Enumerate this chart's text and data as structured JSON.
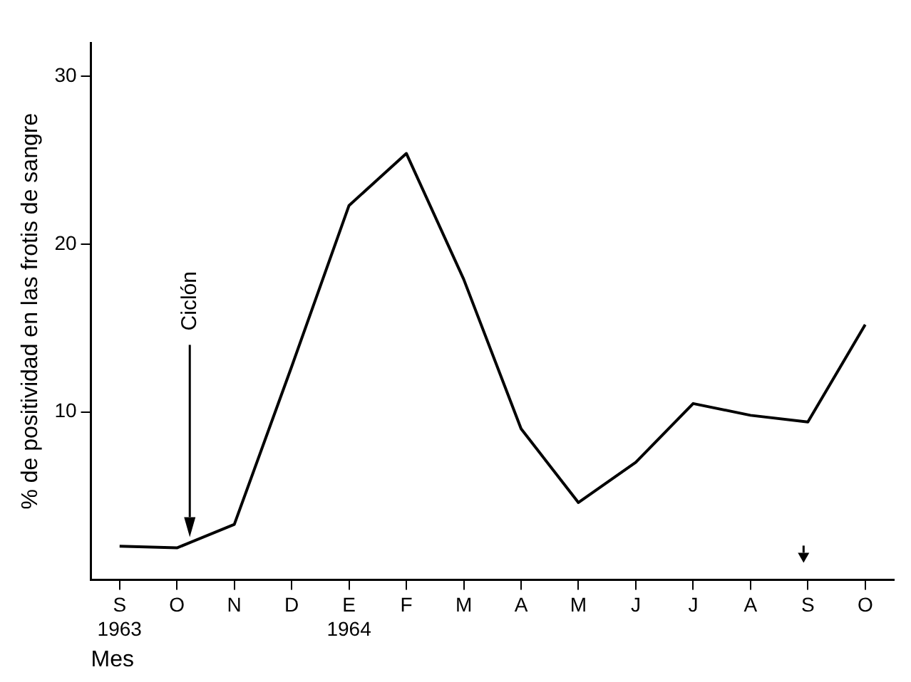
{
  "chart_data": {
    "type": "line",
    "xlabel": "Mes",
    "ylabel": "% de positividad en las frotis de sangre",
    "categories": [
      "S\n1963",
      "O",
      "N",
      "D",
      "E\n1964",
      "F",
      "M",
      "A",
      "M",
      "J",
      "J",
      "A",
      "S",
      "O"
    ],
    "series": [
      {
        "color": "#000000",
        "values": [
          2.0,
          1.9,
          3.3,
          12.7,
          22.3,
          25.4,
          17.9,
          9.0,
          4.6,
          7.0,
          10.5,
          9.8,
          9.4,
          15.2
        ]
      }
    ],
    "ylim": [
      0,
      32
    ],
    "yticks": [
      10,
      20,
      30
    ],
    "grid": false,
    "legend": false,
    "marker": "none",
    "line_style": "solid",
    "annotations": [
      "Ciclón"
    ]
  }
}
